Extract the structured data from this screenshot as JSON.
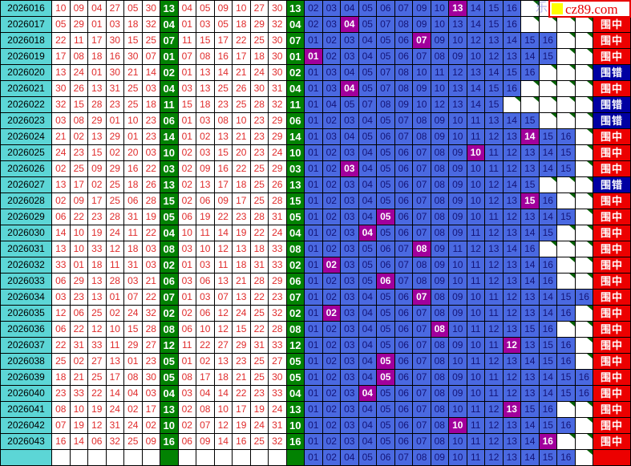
{
  "meta": {
    "watermark": {
      "text": "cz89.com",
      "square_color": "#ffff00"
    },
    "ghost_char": "乐"
  },
  "labels": {
    "hit": "围中",
    "miss": "围错"
  },
  "colors": {
    "period_bg": "#5cd6d6",
    "number_red": "#e02b2b",
    "blue_ball_green_bg": "#028202",
    "prediction_blue_bg": "#4a69e1",
    "prediction_text": "#141477",
    "hit_purple_bg": "#a1009c",
    "result_hit_bg": "#ec0000",
    "result_miss_bg": "#0000a2",
    "excluded_corner_green": "#056105"
  },
  "chart_data": {
    "type": "table",
    "columns": [
      "period",
      "draw_numbers_6",
      "blue_ball",
      "sorted_numbers_6",
      "blue_ball",
      "blue_predictions_01_to_16",
      "result"
    ],
    "rows": [
      {
        "period": "2026016",
        "draw": [
          "10",
          "09",
          "04",
          "27",
          "05",
          "30"
        ],
        "blue": "13",
        "sorted": [
          "04",
          "05",
          "09",
          "10",
          "27",
          "30"
        ],
        "pred": [
          "02",
          "03",
          "04",
          "05",
          "06",
          "07",
          "09",
          "10",
          "13",
          "14",
          "15",
          "16"
        ],
        "result": ""
      },
      {
        "period": "2026017",
        "draw": [
          "05",
          "29",
          "01",
          "03",
          "18",
          "32"
        ],
        "blue": "04",
        "sorted": [
          "01",
          "03",
          "05",
          "18",
          "29",
          "32"
        ],
        "pred": [
          "02",
          "03",
          "04",
          "05",
          "07",
          "08",
          "09",
          "10",
          "13",
          "14",
          "15",
          "16"
        ],
        "result": "围中"
      },
      {
        "period": "2026018",
        "draw": [
          "22",
          "11",
          "17",
          "30",
          "15",
          "25"
        ],
        "blue": "07",
        "sorted": [
          "11",
          "15",
          "17",
          "22",
          "25",
          "30"
        ],
        "pred": [
          "01",
          "02",
          "03",
          "04",
          "05",
          "06",
          "07",
          "09",
          "10",
          "12",
          "13",
          "14",
          "15",
          "16"
        ],
        "result": "围中"
      },
      {
        "period": "2026019",
        "draw": [
          "17",
          "08",
          "18",
          "16",
          "30",
          "07"
        ],
        "blue": "01",
        "sorted": [
          "07",
          "08",
          "16",
          "17",
          "18",
          "30"
        ],
        "pred": [
          "01",
          "02",
          "03",
          "04",
          "05",
          "06",
          "07",
          "08",
          "09",
          "10",
          "12",
          "13",
          "14",
          "15"
        ],
        "result": "围中"
      },
      {
        "period": "2026020",
        "draw": [
          "13",
          "24",
          "01",
          "30",
          "21",
          "14"
        ],
        "blue": "02",
        "sorted": [
          "01",
          "13",
          "14",
          "21",
          "24",
          "30"
        ],
        "pred": [
          "01",
          "03",
          "04",
          "05",
          "07",
          "08",
          "10",
          "11",
          "12",
          "13",
          "14",
          "15",
          "16"
        ],
        "result": "围错"
      },
      {
        "period": "2026021",
        "draw": [
          "30",
          "26",
          "13",
          "31",
          "25",
          "03"
        ],
        "blue": "04",
        "sorted": [
          "03",
          "13",
          "25",
          "26",
          "30",
          "31"
        ],
        "pred": [
          "01",
          "03",
          "04",
          "05",
          "07",
          "08",
          "09",
          "10",
          "13",
          "14",
          "15",
          "16"
        ],
        "result": "围中"
      },
      {
        "period": "2026022",
        "draw": [
          "32",
          "15",
          "28",
          "23",
          "25",
          "18"
        ],
        "blue": "11",
        "sorted": [
          "15",
          "18",
          "23",
          "25",
          "28",
          "32"
        ],
        "pred": [
          "01",
          "04",
          "05",
          "07",
          "08",
          "09",
          "10",
          "12",
          "13",
          "14",
          "15"
        ],
        "result": "围错"
      },
      {
        "period": "2026023",
        "draw": [
          "03",
          "08",
          "29",
          "01",
          "10",
          "23"
        ],
        "blue": "06",
        "sorted": [
          "01",
          "03",
          "08",
          "10",
          "23",
          "29"
        ],
        "pred": [
          "01",
          "02",
          "03",
          "04",
          "05",
          "07",
          "08",
          "09",
          "10",
          "11",
          "13",
          "14",
          "15"
        ],
        "result": "围错"
      },
      {
        "period": "2026024",
        "draw": [
          "21",
          "02",
          "13",
          "29",
          "01",
          "23"
        ],
        "blue": "14",
        "sorted": [
          "01",
          "02",
          "13",
          "21",
          "23",
          "29"
        ],
        "pred": [
          "01",
          "03",
          "04",
          "05",
          "06",
          "07",
          "08",
          "09",
          "10",
          "11",
          "12",
          "13",
          "14",
          "15",
          "16"
        ],
        "result": "围中"
      },
      {
        "period": "2026025",
        "draw": [
          "24",
          "23",
          "15",
          "02",
          "20",
          "03"
        ],
        "blue": "10",
        "sorted": [
          "02",
          "03",
          "15",
          "20",
          "23",
          "24"
        ],
        "pred": [
          "01",
          "02",
          "03",
          "04",
          "05",
          "06",
          "07",
          "08",
          "09",
          "10",
          "11",
          "12",
          "13",
          "14",
          "15"
        ],
        "result": "围中"
      },
      {
        "period": "2026026",
        "draw": [
          "02",
          "25",
          "09",
          "29",
          "16",
          "22"
        ],
        "blue": "03",
        "sorted": [
          "02",
          "09",
          "16",
          "22",
          "25",
          "29"
        ],
        "pred": [
          "01",
          "02",
          "03",
          "04",
          "05",
          "06",
          "07",
          "08",
          "09",
          "10",
          "11",
          "12",
          "13",
          "14",
          "15"
        ],
        "result": "围中"
      },
      {
        "period": "2026027",
        "draw": [
          "13",
          "17",
          "02",
          "25",
          "18",
          "26"
        ],
        "blue": "13",
        "sorted": [
          "02",
          "13",
          "17",
          "18",
          "25",
          "26"
        ],
        "pred": [
          "01",
          "02",
          "03",
          "04",
          "05",
          "06",
          "07",
          "08",
          "09",
          "10",
          "12",
          "14",
          "15"
        ],
        "result": "围错"
      },
      {
        "period": "2026028",
        "draw": [
          "02",
          "09",
          "17",
          "25",
          "06",
          "28"
        ],
        "blue": "15",
        "sorted": [
          "02",
          "06",
          "09",
          "17",
          "25",
          "28"
        ],
        "pred": [
          "01",
          "02",
          "03",
          "04",
          "05",
          "06",
          "07",
          "08",
          "09",
          "10",
          "12",
          "13",
          "15",
          "16"
        ],
        "result": "围中"
      },
      {
        "period": "2026029",
        "draw": [
          "06",
          "22",
          "23",
          "28",
          "31",
          "19"
        ],
        "blue": "05",
        "sorted": [
          "06",
          "19",
          "22",
          "23",
          "28",
          "31"
        ],
        "pred": [
          "01",
          "02",
          "03",
          "04",
          "05",
          "06",
          "07",
          "08",
          "09",
          "10",
          "11",
          "12",
          "13",
          "14",
          "15"
        ],
        "result": "围中"
      },
      {
        "period": "2026030",
        "draw": [
          "14",
          "10",
          "19",
          "24",
          "11",
          "22"
        ],
        "blue": "04",
        "sorted": [
          "10",
          "11",
          "14",
          "19",
          "22",
          "24"
        ],
        "pred": [
          "01",
          "02",
          "03",
          "04",
          "05",
          "06",
          "07",
          "08",
          "09",
          "11",
          "12",
          "13",
          "14",
          "15"
        ],
        "result": "围中"
      },
      {
        "period": "2026031",
        "draw": [
          "13",
          "10",
          "33",
          "12",
          "18",
          "03"
        ],
        "blue": "08",
        "sorted": [
          "03",
          "10",
          "12",
          "13",
          "18",
          "33"
        ],
        "pred": [
          "01",
          "02",
          "03",
          "05",
          "06",
          "07",
          "08",
          "09",
          "11",
          "12",
          "13",
          "14",
          "16"
        ],
        "result": "围中"
      },
      {
        "period": "2026032",
        "draw": [
          "33",
          "01",
          "18",
          "11",
          "31",
          "03"
        ],
        "blue": "02",
        "sorted": [
          "01",
          "03",
          "11",
          "18",
          "31",
          "33"
        ],
        "pred": [
          "01",
          "02",
          "03",
          "05",
          "06",
          "07",
          "08",
          "09",
          "10",
          "11",
          "12",
          "13",
          "14",
          "16"
        ],
        "result": "围中"
      },
      {
        "period": "2026033",
        "draw": [
          "06",
          "29",
          "13",
          "28",
          "03",
          "21"
        ],
        "blue": "06",
        "sorted": [
          "03",
          "06",
          "13",
          "21",
          "28",
          "29"
        ],
        "pred": [
          "01",
          "02",
          "03",
          "05",
          "06",
          "07",
          "08",
          "09",
          "10",
          "11",
          "12",
          "13",
          "14",
          "16"
        ],
        "result": "围中"
      },
      {
        "period": "2026034",
        "draw": [
          "03",
          "23",
          "13",
          "01",
          "07",
          "22"
        ],
        "blue": "07",
        "sorted": [
          "01",
          "03",
          "07",
          "13",
          "22",
          "23"
        ],
        "pred": [
          "01",
          "02",
          "03",
          "04",
          "05",
          "06",
          "07",
          "08",
          "09",
          "10",
          "11",
          "12",
          "13",
          "14",
          "15",
          "16"
        ],
        "result": "围中"
      },
      {
        "period": "2026035",
        "draw": [
          "12",
          "06",
          "25",
          "02",
          "24",
          "32"
        ],
        "blue": "02",
        "sorted": [
          "02",
          "06",
          "12",
          "24",
          "25",
          "32"
        ],
        "pred": [
          "01",
          "02",
          "03",
          "04",
          "05",
          "06",
          "07",
          "08",
          "09",
          "10",
          "11",
          "12",
          "13",
          "14",
          "16"
        ],
        "result": "围中"
      },
      {
        "period": "2026036",
        "draw": [
          "06",
          "22",
          "12",
          "10",
          "15",
          "28"
        ],
        "blue": "08",
        "sorted": [
          "06",
          "10",
          "12",
          "15",
          "22",
          "28"
        ],
        "pred": [
          "01",
          "02",
          "03",
          "04",
          "05",
          "06",
          "07",
          "08",
          "10",
          "11",
          "12",
          "13",
          "15",
          "16"
        ],
        "result": "围中"
      },
      {
        "period": "2026037",
        "draw": [
          "22",
          "31",
          "33",
          "11",
          "29",
          "27"
        ],
        "blue": "12",
        "sorted": [
          "11",
          "22",
          "27",
          "29",
          "31",
          "33"
        ],
        "pred": [
          "01",
          "02",
          "03",
          "04",
          "05",
          "06",
          "07",
          "08",
          "09",
          "10",
          "11",
          "12",
          "13",
          "15",
          "16"
        ],
        "result": "围中"
      },
      {
        "period": "2026038",
        "draw": [
          "25",
          "02",
          "27",
          "13",
          "01",
          "23"
        ],
        "blue": "05",
        "sorted": [
          "01",
          "02",
          "13",
          "23",
          "25",
          "27"
        ],
        "pred": [
          "01",
          "02",
          "03",
          "04",
          "05",
          "06",
          "07",
          "08",
          "10",
          "11",
          "12",
          "13",
          "14",
          "15",
          "16"
        ],
        "result": "围中"
      },
      {
        "period": "2026039",
        "draw": [
          "18",
          "21",
          "25",
          "17",
          "08",
          "30"
        ],
        "blue": "05",
        "sorted": [
          "08",
          "17",
          "18",
          "21",
          "25",
          "30"
        ],
        "pred": [
          "01",
          "02",
          "03",
          "04",
          "05",
          "06",
          "07",
          "08",
          "09",
          "10",
          "11",
          "12",
          "13",
          "14",
          "15",
          "16"
        ],
        "result": "围中"
      },
      {
        "period": "2026040",
        "draw": [
          "23",
          "33",
          "22",
          "14",
          "04",
          "03"
        ],
        "blue": "04",
        "sorted": [
          "03",
          "04",
          "14",
          "22",
          "23",
          "33"
        ],
        "pred": [
          "01",
          "02",
          "03",
          "04",
          "05",
          "06",
          "07",
          "08",
          "09",
          "10",
          "11",
          "12",
          "13",
          "14",
          "15",
          "16"
        ],
        "result": "围中"
      },
      {
        "period": "2026041",
        "draw": [
          "08",
          "10",
          "19",
          "24",
          "02",
          "17"
        ],
        "blue": "13",
        "sorted": [
          "02",
          "08",
          "10",
          "17",
          "19",
          "24"
        ],
        "pred": [
          "01",
          "02",
          "03",
          "04",
          "05",
          "06",
          "07",
          "08",
          "10",
          "11",
          "12",
          "13",
          "15",
          "16"
        ],
        "result": "围中"
      },
      {
        "period": "2026042",
        "draw": [
          "07",
          "19",
          "12",
          "31",
          "24",
          "02"
        ],
        "blue": "10",
        "sorted": [
          "02",
          "07",
          "12",
          "19",
          "24",
          "31"
        ],
        "pred": [
          "01",
          "02",
          "03",
          "04",
          "05",
          "06",
          "07",
          "08",
          "10",
          "11",
          "12",
          "13",
          "14",
          "15",
          "16"
        ],
        "result": "围中"
      },
      {
        "period": "2026043",
        "draw": [
          "16",
          "14",
          "06",
          "32",
          "25",
          "09"
        ],
        "blue": "16",
        "sorted": [
          "06",
          "09",
          "14",
          "16",
          "25",
          "32"
        ],
        "pred": [
          "01",
          "02",
          "03",
          "04",
          "05",
          "06",
          "07",
          "08",
          "10",
          "11",
          "12",
          "13",
          "14",
          "16"
        ],
        "result": "围中"
      }
    ],
    "next_period_row": {
      "period": "",
      "draw": [
        "",
        "",
        "",
        "",
        "",
        ""
      ],
      "blue": "",
      "sorted": [
        "",
        "",
        "",
        "",
        "",
        ""
      ],
      "pred": [
        "01",
        "02",
        "04",
        "05",
        "06",
        "07",
        "08",
        "09",
        "10",
        "11",
        "12",
        "13",
        "14",
        "15",
        "16"
      ],
      "result": ""
    }
  }
}
